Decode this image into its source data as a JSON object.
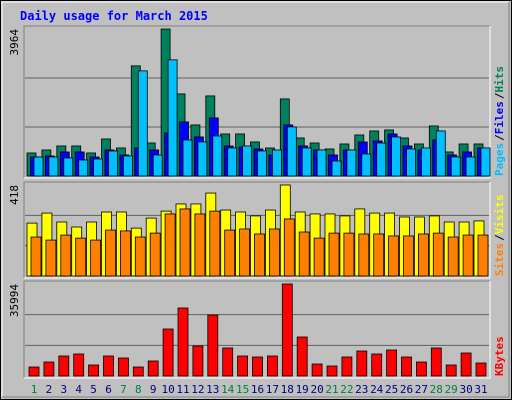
{
  "chart_data": [
    {
      "type": "bar",
      "title": "Daily usage for March 2015",
      "categories": [
        "1",
        "2",
        "3",
        "4",
        "5",
        "6",
        "7",
        "8",
        "9",
        "10",
        "11",
        "12",
        "13",
        "14",
        "15",
        "16",
        "17",
        "18",
        "19",
        "20",
        "21",
        "22",
        "23",
        "24",
        "25",
        "26",
        "27",
        "28",
        "29",
        "30",
        "31"
      ],
      "category_colors": [
        "#008040",
        "#000080",
        "#000080",
        "#000080",
        "#000080",
        "#000080",
        "#008040",
        "#008040",
        "#000080",
        "#000080",
        "#000080",
        "#000080",
        "#000080",
        "#008040",
        "#008040",
        "#000080",
        "#000080",
        "#000080",
        "#000080",
        "#000080",
        "#008040",
        "#008040",
        "#000080",
        "#000080",
        "#000080",
        "#000080",
        "#000080",
        "#008040",
        "#008040",
        "#000080",
        "#000080"
      ],
      "separator": "/",
      "ylim": [
        0,
        3964
      ],
      "yticks": [
        3964
      ],
      "series": [
        {
          "name": "Hits",
          "color": "#00805c",
          "values": [
            621,
            702,
            810,
            810,
            621,
            999,
            756,
            2970,
            891,
            3964,
            2214,
            1377,
            2160,
            1134,
            1134,
            918,
            756,
            2079,
            1026,
            891,
            729,
            864,
            1107,
            1215,
            1242,
            1026,
            864,
            1350,
            648,
            864,
            864
          ]
        },
        {
          "name": "Files",
          "color": "#0000ff",
          "values": [
            513,
            540,
            648,
            648,
            513,
            702,
            567,
            756,
            702,
            1161,
            1458,
            1053,
            1566,
            810,
            783,
            729,
            567,
            1377,
            810,
            702,
            567,
            702,
            918,
            945,
            1134,
            810,
            702,
            972,
            567,
            648,
            756
          ]
        },
        {
          "name": "Pages",
          "color": "#00c0ff",
          "values": [
            513,
            513,
            486,
            432,
            459,
            675,
            540,
            2835,
            567,
            3132,
            972,
            918,
            1080,
            756,
            810,
            675,
            702,
            1323,
            756,
            702,
            405,
            702,
            594,
            891,
            1053,
            729,
            756,
            1215,
            513,
            513,
            756
          ]
        }
      ]
    },
    {
      "type": "bar",
      "separator": "/",
      "ylim": [
        0,
        418
      ],
      "yticks": [
        418
      ],
      "series": [
        {
          "name": "Visits",
          "color": "#ffff00",
          "values": [
            243,
            289,
            248,
            225,
            248,
            294,
            294,
            220,
            266,
            298,
            331,
            331,
            381,
            303,
            294,
            276,
            303,
            418,
            294,
            285,
            285,
            276,
            308,
            289,
            289,
            271,
            271,
            276,
            248,
            248,
            253
          ]
        },
        {
          "name": "Sites",
          "color": "#ff8000",
          "values": [
            179,
            165,
            188,
            174,
            165,
            211,
            207,
            179,
            197,
            285,
            308,
            285,
            298,
            211,
            216,
            193,
            216,
            262,
            202,
            174,
            197,
            197,
            193,
            193,
            184,
            184,
            193,
            197,
            179,
            188,
            188
          ]
        }
      ]
    },
    {
      "type": "bar",
      "ylim": [
        0,
        35994
      ],
      "yticks": [
        35994
      ],
      "series": [
        {
          "name": "KBytes",
          "color": "#ff0000",
          "values": [
            3519,
            5477,
            7825,
            8607,
            4304,
            7825,
            7042,
            3521,
            5868,
            18388,
            26604,
            11737,
            23865,
            10955,
            7825,
            7433,
            7825,
            35994,
            15258,
            4695,
            3912,
            7433,
            9781,
            8607,
            10172,
            7433,
            5477,
            10955,
            4304,
            8998,
            5086
          ]
        }
      ]
    }
  ]
}
